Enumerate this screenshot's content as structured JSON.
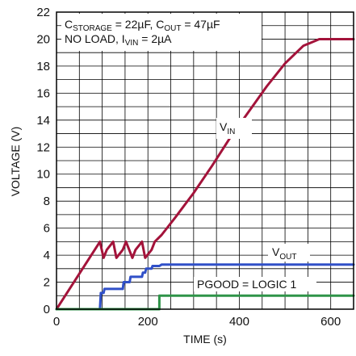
{
  "chart_data": {
    "type": "line",
    "title": "",
    "xlabel": "TIME (s)",
    "ylabel": "VOLTAGE (V)",
    "xlim": [
      0,
      650
    ],
    "ylim": [
      0,
      22
    ],
    "xticks": [
      0,
      200,
      400,
      600
    ],
    "yticks": [
      0,
      2,
      4,
      6,
      8,
      10,
      12,
      14,
      16,
      18,
      20,
      22
    ],
    "grid": true,
    "legend": "none",
    "series": [
      {
        "name": "VIN",
        "color": "#a3133a",
        "x": [
          0,
          95,
          103,
          110,
          124,
          131,
          145,
          152,
          166,
          173,
          187,
          194,
          208,
          215,
          230,
          260,
          300,
          340,
          380,
          420,
          460,
          500,
          540,
          575,
          650
        ],
        "y": [
          0,
          5.0,
          3.8,
          4.4,
          5.0,
          3.8,
          4.4,
          5.0,
          3.8,
          4.4,
          5.0,
          3.8,
          4.4,
          5.0,
          5.5,
          6.8,
          8.6,
          10.6,
          12.7,
          14.6,
          16.5,
          18.2,
          19.5,
          20.0,
          20.0
        ]
      },
      {
        "name": "VOUT",
        "color": "#3050c8",
        "x": [
          0,
          95,
          97,
          103,
          105,
          145,
          147,
          160,
          162,
          187,
          189,
          194,
          196,
          208,
          210,
          225,
          230,
          650
        ],
        "y": [
          0,
          0,
          1.2,
          1.2,
          1.5,
          1.5,
          2.0,
          2.0,
          2.4,
          2.4,
          2.7,
          2.7,
          3.0,
          3.0,
          3.2,
          3.2,
          3.3,
          3.3
        ]
      },
      {
        "name": "PGOOD",
        "color": "#2e9448",
        "x": [
          0,
          225,
          225,
          650
        ],
        "y": [
          0,
          0,
          1.0,
          1.0
        ]
      }
    ],
    "annotations": {
      "conditions_line1": {
        "c_main": "C",
        "c_sub": "STORAGE",
        "c_val": " = 22µF, C",
        "cout_sub": "OUT",
        "cout_val": " = 47µF"
      },
      "conditions_line2": {
        "prefix": "NO LOAD, I",
        "sub": "VIN",
        "suffix": " = 2µA"
      },
      "vin_label": {
        "main": "V",
        "sub": "IN"
      },
      "vout_label": {
        "main": "V",
        "sub": "OUT"
      },
      "pgood_label": "PGOOD = LOGIC 1"
    }
  }
}
